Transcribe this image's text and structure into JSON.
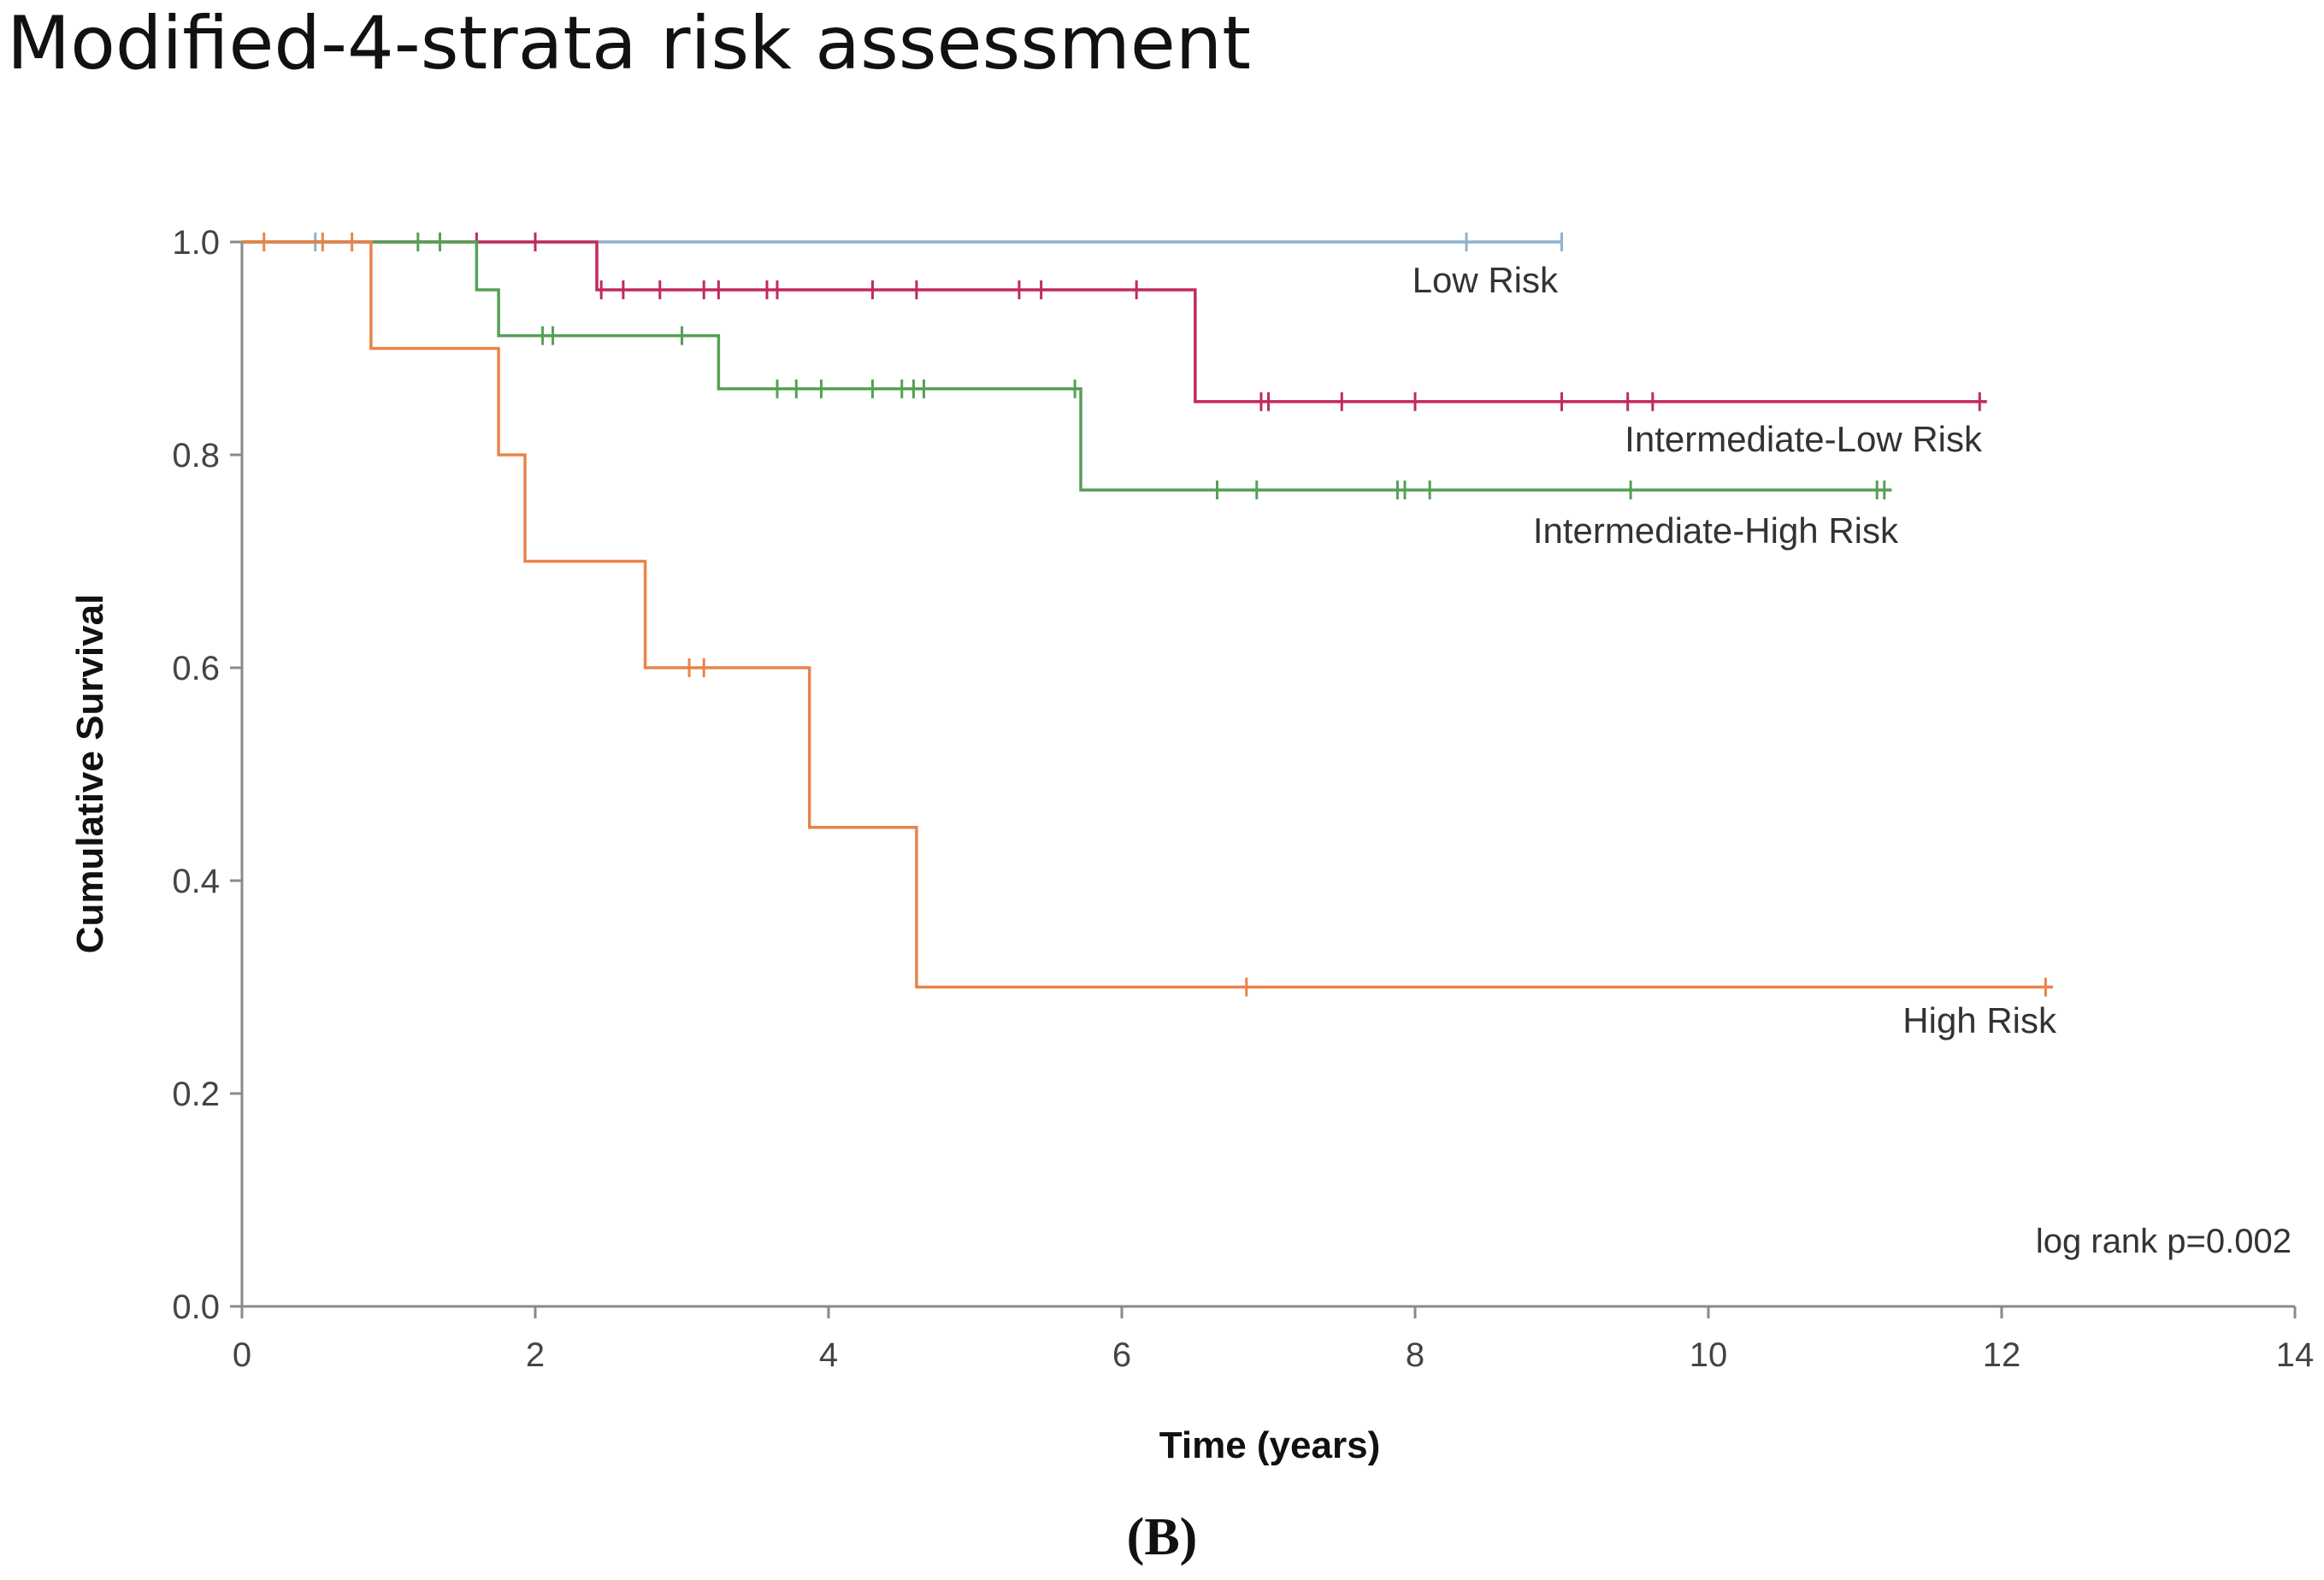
{
  "chart_data": {
    "type": "line",
    "title": "Modified-4-strata risk assessment",
    "xlabel": "Time (years)",
    "ylabel": "Cumulative Survival",
    "xlim": [
      0,
      14
    ],
    "ylim": [
      0,
      1.0
    ],
    "xticks": [
      "0",
      "2",
      "4",
      "6",
      "8",
      "10",
      "12",
      "14"
    ],
    "yticks": [
      "0.0",
      "0.2",
      "0.4",
      "0.6",
      "0.8",
      "1.0"
    ],
    "annotation": "log rank p=0.002",
    "panel_label": "(B)",
    "series": [
      {
        "name": "Low Risk",
        "color": "#8fb1cf",
        "steps": [
          [
            0,
            1.0
          ],
          [
            9.0,
            1.0
          ]
        ],
        "censored": [
          [
            0.5,
            1.0
          ],
          [
            8.35,
            1.0
          ],
          [
            9.0,
            1.0
          ]
        ]
      },
      {
        "name": "Intermediate-Low Risk",
        "color": "#c2295e",
        "steps": [
          [
            0,
            1.0
          ],
          [
            2.42,
            1.0
          ],
          [
            2.42,
            0.955
          ],
          [
            6.5,
            0.955
          ],
          [
            6.5,
            0.85
          ],
          [
            11.9,
            0.85
          ]
        ],
        "censored": [
          [
            1.6,
            1.0
          ],
          [
            2.0,
            1.0
          ],
          [
            2.45,
            0.955
          ],
          [
            2.6,
            0.955
          ],
          [
            2.85,
            0.955
          ],
          [
            3.15,
            0.955
          ],
          [
            3.25,
            0.955
          ],
          [
            3.58,
            0.955
          ],
          [
            3.65,
            0.955
          ],
          [
            4.3,
            0.955
          ],
          [
            4.6,
            0.955
          ],
          [
            5.3,
            0.955
          ],
          [
            5.45,
            0.955
          ],
          [
            6.1,
            0.955
          ],
          [
            6.95,
            0.85
          ],
          [
            7.0,
            0.85
          ],
          [
            7.5,
            0.85
          ],
          [
            8.0,
            0.85
          ],
          [
            9.0,
            0.85
          ],
          [
            9.45,
            0.85
          ],
          [
            9.62,
            0.85
          ],
          [
            11.85,
            0.85
          ]
        ]
      },
      {
        "name": "Intermediate-High Risk",
        "color": "#55a055",
        "steps": [
          [
            0,
            1.0
          ],
          [
            1.6,
            1.0
          ],
          [
            1.6,
            0.955
          ],
          [
            1.75,
            0.955
          ],
          [
            1.75,
            0.912
          ],
          [
            3.25,
            0.912
          ],
          [
            3.25,
            0.862
          ],
          [
            5.72,
            0.862
          ],
          [
            5.72,
            0.767
          ],
          [
            11.25,
            0.767
          ]
        ],
        "censored": [
          [
            1.2,
            1.0
          ],
          [
            1.35,
            1.0
          ],
          [
            2.05,
            0.912
          ],
          [
            2.12,
            0.912
          ],
          [
            3.0,
            0.912
          ],
          [
            3.65,
            0.862
          ],
          [
            3.78,
            0.862
          ],
          [
            3.95,
            0.862
          ],
          [
            4.3,
            0.862
          ],
          [
            4.5,
            0.862
          ],
          [
            4.58,
            0.862
          ],
          [
            4.65,
            0.862
          ],
          [
            5.68,
            0.862
          ],
          [
            6.65,
            0.767
          ],
          [
            6.92,
            0.767
          ],
          [
            7.88,
            0.767
          ],
          [
            7.93,
            0.767
          ],
          [
            8.1,
            0.767
          ],
          [
            9.47,
            0.767
          ],
          [
            11.15,
            0.767
          ],
          [
            11.2,
            0.767
          ]
        ]
      },
      {
        "name": "High Risk",
        "color": "#e8844a",
        "steps": [
          [
            0,
            1.0
          ],
          [
            0.88,
            1.0
          ],
          [
            0.88,
            0.9
          ],
          [
            1.75,
            0.9
          ],
          [
            1.75,
            0.8
          ],
          [
            1.93,
            0.8
          ],
          [
            1.93,
            0.7
          ],
          [
            2.75,
            0.7
          ],
          [
            2.75,
            0.6
          ],
          [
            3.87,
            0.6
          ],
          [
            3.87,
            0.45
          ],
          [
            4.6,
            0.45
          ],
          [
            4.6,
            0.3
          ],
          [
            12.35,
            0.3
          ]
        ],
        "censored": [
          [
            0.15,
            1.0
          ],
          [
            0.55,
            1.0
          ],
          [
            0.75,
            1.0
          ],
          [
            3.05,
            0.6
          ],
          [
            3.15,
            0.6
          ],
          [
            6.85,
            0.3
          ],
          [
            12.3,
            0.3
          ]
        ]
      }
    ]
  }
}
